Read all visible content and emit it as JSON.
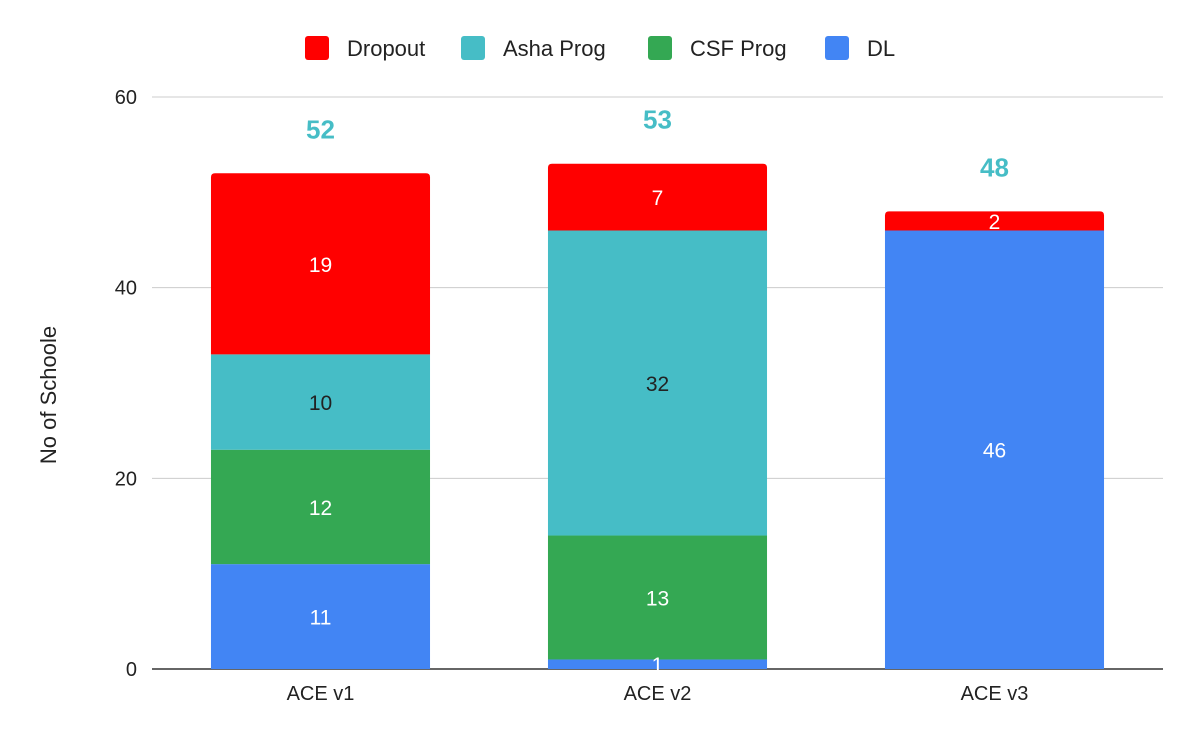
{
  "chart_data": {
    "type": "bar",
    "stacked": true,
    "categories": [
      "ACE v1",
      "ACE v2",
      "ACE v3"
    ],
    "series": [
      {
        "name": "DL",
        "color": "#4285f4",
        "values": [
          11,
          1,
          46
        ],
        "label_color": "#ffffff"
      },
      {
        "name": "CSF Prog",
        "color": "#34a853",
        "values": [
          12,
          13,
          0
        ],
        "label_color": "#ffffff"
      },
      {
        "name": "Asha Prog",
        "color": "#46bdc6",
        "values": [
          10,
          32,
          0
        ],
        "label_color": "#222222"
      },
      {
        "name": "Dropout",
        "color": "#ff0000",
        "values": [
          19,
          7,
          2
        ],
        "label_color": "#ffffff"
      }
    ],
    "totals": [
      52,
      53,
      48
    ],
    "totals_color": "#46bdc6",
    "legend_order": [
      "Dropout",
      "Asha Prog",
      "CSF Prog",
      "DL"
    ],
    "legend_position": "top",
    "xlabel": "",
    "ylabel": "No of Schoole",
    "ylim": [
      0,
      60
    ],
    "yticks": [
      0,
      20,
      40,
      60
    ],
    "grid": true
  }
}
